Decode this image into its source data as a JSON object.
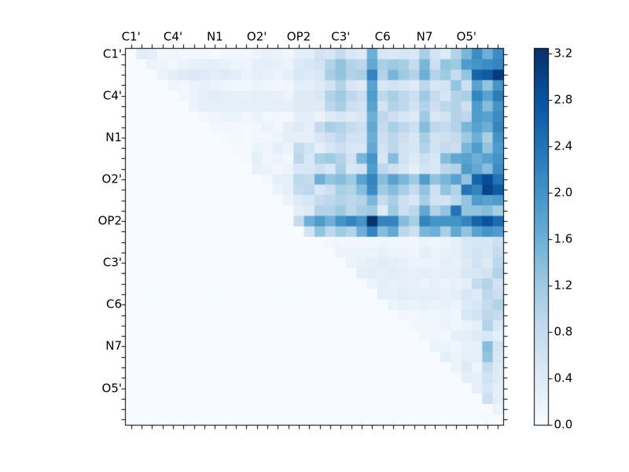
{
  "figure": {
    "background_color": "#ffffff",
    "text_color": "#000000",
    "frame_color": "#000000"
  },
  "chart_data": {
    "type": "heatmap",
    "title": "",
    "xlabel": "",
    "ylabel": "",
    "grid_size": 36,
    "x_tick_labels": [
      "C1'",
      "C4'",
      "N1",
      "O2'",
      "OP2",
      "C3'",
      "C6",
      "N7",
      "O5'"
    ],
    "y_tick_labels": [
      "C1'",
      "C4'",
      "N1",
      "O2'",
      "OP2",
      "C3'",
      "C6",
      "N7",
      "O5'"
    ],
    "labeled_cell_indices": [
      0,
      4,
      8,
      12,
      16,
      20,
      24,
      28,
      32
    ],
    "vmin": 0.0,
    "vmax": 3.2,
    "colormap": {
      "name": "Blues",
      "stops": [
        "#f7fbff",
        "#deebf7",
        "#c6dbef",
        "#9ecae1",
        "#6baed6",
        "#4292c6",
        "#2171b5",
        "#08519c",
        "#08306b"
      ]
    },
    "colorbar": {
      "tick_labels": [
        "0.0",
        "0.4",
        "0.8",
        "1.2",
        "1.6",
        "2.0",
        "2.4",
        "2.8",
        "3.2"
      ]
    },
    "matrix": [
      [
        0,
        0.35,
        0.3,
        0.1,
        0.15,
        0.1,
        0.1,
        0.1,
        0.05,
        0.1,
        0.1,
        0.1,
        0.2,
        0.25,
        0.2,
        0.15,
        0.3,
        0.35,
        0.6,
        0.5,
        0.8,
        0.5,
        0.4,
        1.6,
        0.5,
        0.45,
        0.5,
        0.45,
        1.1,
        0.6,
        0.4,
        1.0,
        1.5,
        2.1,
        1.6,
        2.1
      ],
      [
        0,
        0,
        0.2,
        0.15,
        0.1,
        0.2,
        0.25,
        0.3,
        0.3,
        0.25,
        0.2,
        0.15,
        0.3,
        0.3,
        0.25,
        0.2,
        0.4,
        0.5,
        0.6,
        1.0,
        1.3,
        1.0,
        0.9,
        1.7,
        1.1,
        1.2,
        1.1,
        0.8,
        1.5,
        0.7,
        1.3,
        1.2,
        1.9,
        2.0,
        2.1,
        2.2
      ],
      [
        0,
        0,
        0,
        0.2,
        0.3,
        0.4,
        0.45,
        0.4,
        0.35,
        0.4,
        0.35,
        0.2,
        0.3,
        0.25,
        0.2,
        0.3,
        0.5,
        0.4,
        0.5,
        1.1,
        1.3,
        1.0,
        1.1,
        2.2,
        1.0,
        1.5,
        1.2,
        1.0,
        1.6,
        1.0,
        1.2,
        0.8,
        1.3,
        2.6,
        2.7,
        3.1
      ],
      [
        0,
        0,
        0,
        0,
        0.15,
        0.1,
        0.2,
        0.25,
        0.2,
        0.15,
        0.1,
        0.1,
        0.2,
        0.15,
        0.1,
        0.15,
        0.3,
        0.3,
        0.4,
        0.6,
        1.0,
        0.5,
        0.4,
        1.8,
        0.5,
        0.6,
        0.5,
        0.4,
        0.9,
        0.5,
        0.6,
        1.3,
        0.7,
        1.8,
        1.3,
        2.0
      ],
      [
        0,
        0,
        0,
        0,
        0,
        0.1,
        0.2,
        0.3,
        0.35,
        0.3,
        0.3,
        0.25,
        0.3,
        0.3,
        0.25,
        0.2,
        0.4,
        0.4,
        0.5,
        1.0,
        1.2,
        0.9,
        0.7,
        1.9,
        0.9,
        1.1,
        0.9,
        0.7,
        1.2,
        0.8,
        0.5,
        1.0,
        1.1,
        2.2,
        1.8,
        2.3
      ],
      [
        0,
        0,
        0,
        0,
        0,
        0,
        0.2,
        0.3,
        0.3,
        0.3,
        0.3,
        0.3,
        0.3,
        0.3,
        0.3,
        0.3,
        0.4,
        0.4,
        0.4,
        0.9,
        1.1,
        0.7,
        0.6,
        1.8,
        0.6,
        1.0,
        0.9,
        0.6,
        1.0,
        0.7,
        0.9,
        1.0,
        0.7,
        1.9,
        1.4,
        2.0
      ],
      [
        0,
        0,
        0,
        0,
        0,
        0,
        0,
        0.1,
        0.15,
        0.2,
        0.2,
        0.1,
        0.2,
        0.1,
        0.1,
        0.1,
        0.3,
        0.3,
        0.2,
        0.4,
        0.5,
        0.4,
        0.5,
        1.6,
        0.9,
        0.7,
        0.5,
        0.4,
        1.2,
        0.5,
        0.6,
        1.0,
        0.9,
        1.9,
        1.8,
        2.1
      ],
      [
        0,
        0,
        0,
        0,
        0,
        0,
        0,
        0,
        0.1,
        0.1,
        0.1,
        0.05,
        0.1,
        0.2,
        0.1,
        0.3,
        0.4,
        0.3,
        0.8,
        1.1,
        1.0,
        0.8,
        0.7,
        1.7,
        0.8,
        1.1,
        0.9,
        0.7,
        1.4,
        0.9,
        0.8,
        1.0,
        1.5,
        1.8,
        1.6,
        2.2
      ],
      [
        0,
        0,
        0,
        0,
        0,
        0,
        0,
        0,
        0,
        0.05,
        0.1,
        0.05,
        0.1,
        0.1,
        0.2,
        0.3,
        0.3,
        0.3,
        0.5,
        0.7,
        0.9,
        0.6,
        0.6,
        1.6,
        0.7,
        0.9,
        0.7,
        0.5,
        1.1,
        0.6,
        0.7,
        0.8,
        1.2,
        1.6,
        1.1,
        2.0
      ],
      [
        0,
        0,
        0,
        0,
        0,
        0,
        0,
        0,
        0,
        0,
        0.05,
        0.05,
        0.2,
        0.15,
        0.3,
        0.2,
        0.8,
        0.6,
        0.3,
        0.5,
        0.7,
        0.5,
        0.5,
        1.7,
        0.6,
        0.9,
        0.6,
        0.5,
        1.0,
        0.6,
        0.8,
        0.7,
        1.5,
        1.9,
        1.3,
        1.9
      ],
      [
        0,
        0,
        0,
        0,
        0,
        0,
        0,
        0,
        0,
        0,
        0,
        0.05,
        0.3,
        0.1,
        0.2,
        0.1,
        0.9,
        0.5,
        1.1,
        1.2,
        1.0,
        0.6,
        1.5,
        2.0,
        0.5,
        1.4,
        0.6,
        0.4,
        0.7,
        0.5,
        1.4,
        1.7,
        1.8,
        1.6,
        1.8,
        2.0
      ],
      [
        0,
        0,
        0,
        0,
        0,
        0,
        0,
        0,
        0,
        0,
        0,
        0,
        0.25,
        0.2,
        0.1,
        0.2,
        0.5,
        0.5,
        0.7,
        0.5,
        1.1,
        0.5,
        0.6,
        1.9,
        0.9,
        0.7,
        0.5,
        0.3,
        0.6,
        0.5,
        0.9,
        1.0,
        1.9,
        1.7,
        1.4,
        2.1
      ],
      [
        0,
        0,
        0,
        0,
        0,
        0,
        0,
        0,
        0,
        0,
        0,
        0,
        0,
        0.1,
        0.3,
        0.3,
        0.9,
        0.8,
        1.6,
        1.3,
        1.4,
        1.2,
        1.8,
        2.2,
        1.4,
        1.8,
        1.5,
        1.2,
        1.9,
        1.3,
        1.5,
        1.8,
        1.3,
        2.6,
        2.9,
        2.4
      ],
      [
        0,
        0,
        0,
        0,
        0,
        0,
        0,
        0,
        0,
        0,
        0,
        0,
        0,
        0,
        0.2,
        0.3,
        0.8,
        0.9,
        0.5,
        0.7,
        1.1,
        1.0,
        1.4,
        2.1,
        1.2,
        1.4,
        1.1,
        0.8,
        1.3,
        0.7,
        1.3,
        1.0,
        2.4,
        2.2,
        3.0,
        2.7
      ],
      [
        0,
        0,
        0,
        0,
        0,
        0,
        0,
        0,
        0,
        0,
        0,
        0,
        0,
        0,
        0,
        0.2,
        0.4,
        0.5,
        0.8,
        0.9,
        1.0,
        0.9,
        1.0,
        1.5,
        0.8,
        1.1,
        0.7,
        0.5,
        1.1,
        0.6,
        0.6,
        0.9,
        1.3,
        1.9,
        1.8,
        1.9
      ],
      [
        0,
        0,
        0,
        0,
        0,
        0,
        0,
        0,
        0,
        0,
        0,
        0,
        0,
        0,
        0,
        0,
        0.3,
        0.4,
        1.0,
        1.0,
        1.2,
        0.9,
        1.1,
        1.2,
        0.4,
        1.2,
        0.7,
        0.9,
        1.7,
        1.0,
        1.3,
        2.4,
        1.3,
        1.3,
        1.4,
        1.1
      ],
      [
        0,
        0,
        0,
        0,
        0,
        0,
        0,
        0,
        0,
        0,
        0,
        0,
        0,
        0,
        0,
        0,
        0.8,
        1.6,
        1.9,
        1.6,
        2.0,
        2.2,
        2.0,
        3.2,
        2.2,
        2.2,
        1.4,
        1.1,
        2.2,
        2.0,
        2.0,
        2.0,
        2.2,
        2.6,
        2.8,
        2.5
      ],
      [
        0,
        0,
        0,
        0,
        0,
        0,
        0,
        0,
        0,
        0,
        0,
        0,
        0,
        0,
        0,
        0,
        0,
        0.6,
        1.3,
        0.9,
        1.2,
        1.0,
        1.6,
        2.2,
        1.4,
        1.7,
        0.9,
        0.7,
        1.5,
        1.6,
        1.1,
        1.7,
        1.3,
        1.8,
        2.0,
        1.9
      ],
      [
        0,
        0,
        0,
        0,
        0,
        0,
        0,
        0,
        0,
        0,
        0,
        0,
        0,
        0,
        0,
        0,
        0,
        0,
        0,
        0.1,
        0.1,
        0.1,
        0.1,
        0.1,
        0.15,
        0.1,
        0.1,
        0.1,
        0.2,
        0.15,
        0.2,
        0.3,
        0.5,
        0.5,
        0.5,
        0.7
      ],
      [
        0,
        0,
        0,
        0,
        0,
        0,
        0,
        0,
        0,
        0,
        0,
        0,
        0,
        0,
        0,
        0,
        0,
        0,
        0,
        0,
        0.2,
        0.2,
        0.2,
        0.2,
        0.25,
        0.2,
        0.2,
        0.15,
        0.3,
        0.2,
        0.25,
        0.3,
        0.5,
        0.6,
        0.5,
        0.8
      ],
      [
        0,
        0,
        0,
        0,
        0,
        0,
        0,
        0,
        0,
        0,
        0,
        0,
        0,
        0,
        0,
        0,
        0,
        0,
        0,
        0,
        0,
        0.2,
        0.25,
        0.3,
        0.35,
        0.3,
        0.25,
        0.2,
        0.2,
        0.2,
        0.3,
        0.25,
        0.4,
        0.6,
        0.4,
        0.9
      ],
      [
        0,
        0,
        0,
        0,
        0,
        0,
        0,
        0,
        0,
        0,
        0,
        0,
        0,
        0,
        0,
        0,
        0,
        0,
        0,
        0,
        0,
        0,
        0.3,
        0.35,
        0.3,
        0.35,
        0.3,
        0.25,
        0.3,
        0.25,
        0.3,
        0.3,
        0.5,
        0.5,
        0.6,
        1.0
      ],
      [
        0,
        0,
        0,
        0,
        0,
        0,
        0,
        0,
        0,
        0,
        0,
        0,
        0,
        0,
        0,
        0,
        0,
        0,
        0,
        0,
        0,
        0,
        0,
        0.2,
        0.3,
        0.25,
        0.3,
        0.25,
        0.2,
        0.25,
        0.2,
        0.25,
        0.3,
        0.8,
        1.0,
        0.6
      ],
      [
        0,
        0,
        0,
        0,
        0,
        0,
        0,
        0,
        0,
        0,
        0,
        0,
        0,
        0,
        0,
        0,
        0,
        0,
        0,
        0,
        0,
        0,
        0,
        0,
        0.3,
        0.3,
        0.35,
        0.3,
        0.3,
        0.3,
        0.25,
        0.3,
        0.5,
        0.4,
        0.9,
        0.7
      ],
      [
        0,
        0,
        0,
        0,
        0,
        0,
        0,
        0,
        0,
        0,
        0,
        0,
        0,
        0,
        0,
        0,
        0,
        0,
        0,
        0,
        0,
        0,
        0,
        0,
        0,
        0.2,
        0.25,
        0.2,
        0.25,
        0.2,
        0.25,
        0.2,
        0.4,
        0.5,
        0.8,
        1.0
      ],
      [
        0,
        0,
        0,
        0,
        0,
        0,
        0,
        0,
        0,
        0,
        0,
        0,
        0,
        0,
        0,
        0,
        0,
        0,
        0,
        0,
        0,
        0,
        0,
        0,
        0,
        0,
        0.1,
        0.1,
        0.15,
        0.1,
        0.2,
        0.15,
        0.5,
        0.6,
        0.9,
        0.8
      ],
      [
        0,
        0,
        0,
        0,
        0,
        0,
        0,
        0,
        0,
        0,
        0,
        0,
        0,
        0,
        0,
        0,
        0,
        0,
        0,
        0,
        0,
        0,
        0,
        0,
        0,
        0,
        0,
        0.1,
        0.1,
        0.1,
        0.2,
        0.15,
        0.2,
        0.3,
        1.0,
        0.5
      ],
      [
        0,
        0,
        0,
        0,
        0,
        0,
        0,
        0,
        0,
        0,
        0,
        0,
        0,
        0,
        0,
        0,
        0,
        0,
        0,
        0,
        0,
        0,
        0,
        0,
        0,
        0,
        0,
        0,
        0.1,
        0.1,
        0.1,
        0.3,
        0.3,
        0.4,
        0.5,
        0.3
      ],
      [
        0,
        0,
        0,
        0,
        0,
        0,
        0,
        0,
        0,
        0,
        0,
        0,
        0,
        0,
        0,
        0,
        0,
        0,
        0,
        0,
        0,
        0,
        0,
        0,
        0,
        0,
        0,
        0,
        0,
        0.2,
        0.2,
        0.15,
        0.25,
        0.3,
        1.4,
        0.6
      ],
      [
        0,
        0,
        0,
        0,
        0,
        0,
        0,
        0,
        0,
        0,
        0,
        0,
        0,
        0,
        0,
        0,
        0,
        0,
        0,
        0,
        0,
        0,
        0,
        0,
        0,
        0,
        0,
        0,
        0,
        0,
        0.3,
        0.2,
        0.3,
        0.3,
        1.3,
        0.5
      ],
      [
        0,
        0,
        0,
        0,
        0,
        0,
        0,
        0,
        0,
        0,
        0,
        0,
        0,
        0,
        0,
        0,
        0,
        0,
        0,
        0,
        0,
        0,
        0,
        0,
        0,
        0,
        0,
        0,
        0,
        0,
        0,
        0.2,
        0.4,
        0.2,
        0.8,
        0.4
      ],
      [
        0,
        0,
        0,
        0,
        0,
        0,
        0,
        0,
        0,
        0,
        0,
        0,
        0,
        0,
        0,
        0,
        0,
        0,
        0,
        0,
        0,
        0,
        0,
        0,
        0,
        0,
        0,
        0,
        0,
        0,
        0,
        0,
        0.3,
        0.3,
        0.6,
        0.4
      ],
      [
        0,
        0,
        0,
        0,
        0,
        0,
        0,
        0,
        0,
        0,
        0,
        0,
        0,
        0,
        0,
        0,
        0,
        0,
        0,
        0,
        0,
        0,
        0,
        0,
        0,
        0,
        0,
        0,
        0,
        0,
        0,
        0,
        0,
        0.3,
        0.5,
        0.3
      ],
      [
        0,
        0,
        0,
        0,
        0,
        0,
        0,
        0,
        0,
        0,
        0,
        0,
        0,
        0,
        0,
        0,
        0,
        0,
        0,
        0,
        0,
        0,
        0,
        0,
        0,
        0,
        0,
        0,
        0,
        0,
        0,
        0,
        0,
        0,
        0.7,
        0.3
      ],
      [
        0,
        0,
        0,
        0,
        0,
        0,
        0,
        0,
        0,
        0,
        0,
        0,
        0,
        0,
        0,
        0,
        0,
        0,
        0,
        0,
        0,
        0,
        0,
        0,
        0,
        0,
        0,
        0,
        0,
        0,
        0,
        0,
        0,
        0,
        0,
        0.2
      ],
      [
        0,
        0,
        0,
        0,
        0,
        0,
        0,
        0,
        0,
        0,
        0,
        0,
        0,
        0,
        0,
        0,
        0,
        0,
        0,
        0,
        0,
        0,
        0,
        0,
        0,
        0,
        0,
        0,
        0,
        0,
        0,
        0,
        0,
        0,
        0,
        0
      ]
    ]
  }
}
